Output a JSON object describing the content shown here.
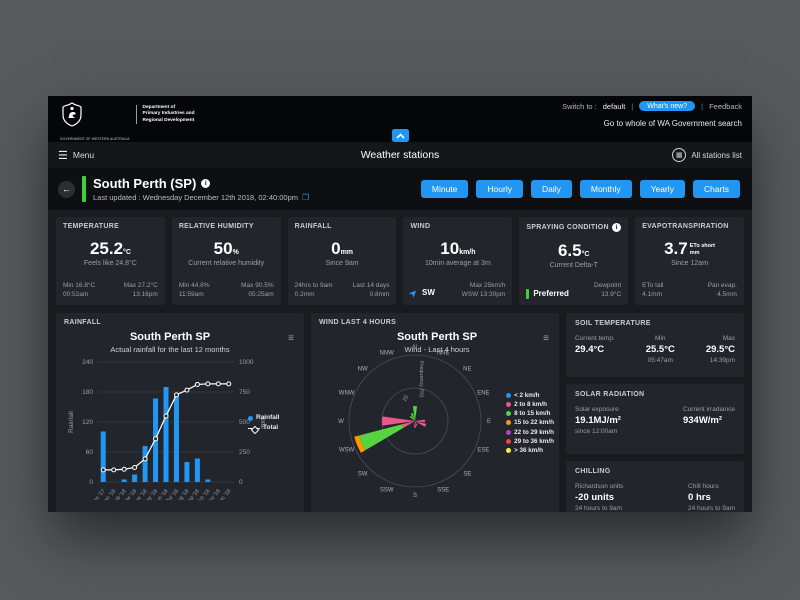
{
  "header": {
    "dept_lines": [
      "Department of",
      "Primary Industries and",
      "Regional Development"
    ],
    "crest_caption": "GOVERNMENT OF WESTERN AUSTRALIA",
    "switch_label": "Switch to :",
    "switch_value": "default",
    "whats_new": "What's new?",
    "feedback": "Feedback",
    "gov_search": "Go to whole of WA Government search",
    "accent_blue": "#2196f3"
  },
  "nav": {
    "menu": "Menu",
    "title": "Weather stations",
    "stations_list": "All stations list"
  },
  "station": {
    "title": "South Perth (SP)",
    "last_updated": "Last updated : Wednesday December 12th 2018, 02:40:00pm",
    "accent_green": "#3fd03f",
    "time_buttons": [
      "Minute",
      "Hourly",
      "Daily",
      "Monthly",
      "Yearly",
      "Charts"
    ]
  },
  "kpi_cards": [
    {
      "id": "temperature",
      "title": "TEMPERATURE",
      "info": false,
      "value": "25.2",
      "unit": "°C",
      "sub": "Feels like 24.8°C",
      "foot_left": [
        "Min 16.8°C",
        "00:52am"
      ],
      "foot_right": [
        "Max 27.2°C",
        "13:16pm"
      ]
    },
    {
      "id": "relative-humidity",
      "title": "RELATIVE HUMIDITY",
      "info": false,
      "value": "50",
      "unit": "%",
      "sub": "Current relative humidity",
      "foot_left": [
        "Min 44.8%",
        "11:59am"
      ],
      "foot_right": [
        "Max 90.5%",
        "05:25am"
      ]
    },
    {
      "id": "rainfall",
      "title": "RAINFALL",
      "info": false,
      "value": "0",
      "unit": "mm",
      "sub": "Since 9am",
      "foot_left": [
        "24hrs to 9am",
        "0.2mm"
      ],
      "foot_right": [
        "Last 14 days",
        "0.8mm"
      ]
    },
    {
      "id": "wind",
      "title": "WIND",
      "info": false,
      "value": "10",
      "unit": "km/h",
      "sub": "10min average at 3m",
      "foot_left_icon": "wind-arrow",
      "foot_left_strong": "SW",
      "foot_left": [],
      "foot_right": [
        "Max 25km/h",
        "WSW 13:30pm"
      ]
    },
    {
      "id": "spraying-condition",
      "title": "SPRAYING CONDITION",
      "info": true,
      "value": "6.5",
      "unit": "°C",
      "sub": "Current Delta-T",
      "foot_left_icon": "preferred-bar",
      "foot_left_strong": "Preferred",
      "foot_left": [],
      "foot_right": [
        "Dewpoint",
        "13.9°C"
      ]
    },
    {
      "id": "evapotranspiration",
      "title": "EVAPOTRANSPIRATION",
      "info": false,
      "value": "3.7",
      "unit_stack": [
        "ETo short",
        "mm"
      ],
      "sub": "Since 12am",
      "foot_left": [
        "ETo tall",
        "4.1mm"
      ],
      "foot_right": [
        "Pan evap.",
        "4.5mm"
      ]
    }
  ],
  "panels": {
    "rainfall_header": "RAINFALL",
    "wind_header": "WIND LAST 4 HOURS"
  },
  "chart_data": [
    {
      "type": "bar",
      "title": "South Perth SP",
      "subtitle": "Actual rainfall for the last 12 months",
      "categories": [
        "Dec '17",
        "Jan '18",
        "Feb '18",
        "Mar '18",
        "Apr '18",
        "May '18",
        "Jun '18",
        "Jul '18",
        "Aug '18",
        "Sep '18",
        "Oct '18",
        "Nov '18",
        "Dec '18"
      ],
      "series": [
        {
          "name": "Rainfall",
          "type": "bar",
          "color": "#2196f3",
          "values": [
            101,
            0,
            5,
            15,
            72,
            167,
            190,
            176,
            40,
            47,
            5,
            0,
            0
          ]
        },
        {
          "name": "Total",
          "type": "line",
          "color": "#ffffff",
          "axis": "right",
          "values": [
            101,
            101,
            106,
            121,
            193,
            360,
            550,
            726,
            766,
            813,
            818,
            818,
            818
          ]
        }
      ],
      "ylabel_left": "Rainfall",
      "ylabel_right": "Total",
      "ylim_left": [
        0,
        240
      ],
      "yticks_left": [
        0,
        60,
        120,
        180,
        240
      ],
      "ylim_right": [
        0,
        1000
      ],
      "yticks_right": [
        0,
        250,
        500,
        750,
        1000
      ],
      "legend_position": "right",
      "grid": true
    },
    {
      "type": "windrose",
      "title": "South Perth SP",
      "subtitle": "Wind - Last 4 hours",
      "radial_label": "Frequency (%)",
      "radial_ticks": [
        20,
        40
      ],
      "radial_max": 40,
      "directions": [
        "N",
        "NNE",
        "NE",
        "ENE",
        "E",
        "ESE",
        "SE",
        "SSE",
        "S",
        "SSW",
        "SW",
        "WSW",
        "W",
        "WNW",
        "NW",
        "NNW"
      ],
      "bands": [
        {
          "label": "< 2 km/h",
          "color": "#2196f3"
        },
        {
          "label": "2 to 8 km/h",
          "color": "#f0568e"
        },
        {
          "label": "8 to 15 km/h",
          "color": "#55d43f"
        },
        {
          "label": "15 to 22 km/h",
          "color": "#ff9800"
        },
        {
          "label": "22 to 29 km/h",
          "color": "#ab47bc"
        },
        {
          "label": "29 to 36 km/h",
          "color": "#f44336"
        },
        {
          "label": "> 36 km/h",
          "color": "#ffeb3b"
        }
      ],
      "petals": [
        {
          "dir": "N",
          "stack": [
            {
              "band": 2,
              "value": 9
            }
          ]
        },
        {
          "dir": "NNW",
          "stack": [
            {
              "band": 2,
              "value": 5
            }
          ]
        },
        {
          "dir": "NW",
          "stack": [
            {
              "band": 2,
              "value": 4
            }
          ]
        },
        {
          "dir": "W",
          "stack": [
            {
              "band": 1,
              "value": 20
            }
          ]
        },
        {
          "dir": "WSW",
          "stack": [
            {
              "band": 1,
              "value": 8
            },
            {
              "band": 2,
              "value": 27
            },
            {
              "band": 3,
              "value": 3
            }
          ]
        },
        {
          "dir": "E",
          "stack": [
            {
              "band": 1,
              "value": 6
            }
          ]
        },
        {
          "dir": "ESE",
          "stack": [
            {
              "band": 1,
              "value": 7
            }
          ]
        },
        {
          "dir": "S",
          "stack": [
            {
              "band": 1,
              "value": 4
            }
          ]
        },
        {
          "dir": "SSE",
          "stack": [
            {
              "band": 1,
              "value": 3
            }
          ]
        }
      ]
    }
  ],
  "right_cards": [
    {
      "id": "soil-temperature",
      "title": "SOIL TEMPERATURE",
      "cls": "soil-card",
      "cols": [
        {
          "label": "Current temp.",
          "value": "29.4°C",
          "sub": ""
        },
        {
          "label": "Min",
          "value": "25.5°C",
          "sub": "05:47am"
        },
        {
          "label": "Max",
          "value": "29.5°C",
          "sub": "14:39pm"
        }
      ]
    },
    {
      "id": "solar-radiation",
      "title": "SOLAR RADIATION",
      "cls": "solar-card",
      "cols": [
        {
          "label": "Solar exposure",
          "value": "19.1MJ/m²",
          "sub": "since 12:00am"
        },
        {
          "label": "Current irradiance",
          "value": "934W/m²",
          "sub": ""
        }
      ]
    },
    {
      "id": "chilling",
      "title": "CHILLING",
      "cls": "chill-card",
      "cols": [
        {
          "label": "Richardson units",
          "value": "-20 units",
          "sub": "24 hours to 9am"
        },
        {
          "label": "Chill hours",
          "value": "0 hrs",
          "sub": "24 hours to 9am"
        }
      ]
    }
  ]
}
